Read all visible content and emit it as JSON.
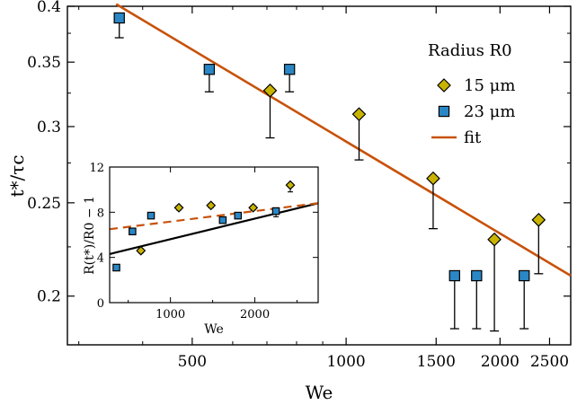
{
  "chart_data": [
    {
      "type": "scatter",
      "xlabel": "We",
      "ylabel": "t*/τc",
      "x_scale": "log",
      "y_scale": "log",
      "xlim": [
        285,
        2750
      ],
      "ylim": [
        0.178,
        0.4
      ],
      "x_ticks": [
        500,
        1000,
        1500,
        2000,
        2500
      ],
      "y_ticks": [
        0.2,
        0.25,
        0.3,
        0.35,
        0.4
      ],
      "legend": {
        "title": "Radius R0",
        "position": "top-right",
        "entries": [
          "15 μm",
          "23 μm",
          "fit"
        ]
      },
      "series": [
        {
          "name": "15 μm",
          "marker": "diamond",
          "color": "#c8b400",
          "x": [
            710,
            1060,
            1480,
            1950,
            2380
          ],
          "y": [
            0.327,
            0.309,
            0.265,
            0.229,
            0.24
          ],
          "err_low": [
            0.292,
            0.277,
            0.235,
            0.184,
            0.211
          ]
        },
        {
          "name": "23 μm",
          "marker": "square",
          "color": "#2a86c4",
          "x": [
            360,
            540,
            775,
            1630,
            1800,
            2230
          ],
          "y": [
            0.389,
            0.344,
            0.344,
            0.21,
            0.21,
            0.21
          ],
          "err_low": [
            0.371,
            0.326,
            0.326,
            0.185,
            0.185,
            0.185
          ]
        },
        {
          "name": "fit",
          "type": "line",
          "color": "#c8520a",
          "x": [
            355,
            2750
          ],
          "y": [
            0.402,
            0.21
          ]
        }
      ]
    },
    {
      "type": "scatter",
      "position": "inset",
      "xlabel": "We",
      "ylabel": "R(t*)/R0 − 1",
      "xlim": [
        280,
        2750
      ],
      "ylim": [
        0,
        12
      ],
      "x_ticks": [
        1000,
        2000
      ],
      "y_ticks": [
        0,
        4,
        8,
        12
      ],
      "series": [
        {
          "name": "15 μm",
          "marker": "diamond",
          "color": "#c8b400",
          "x": [
            650,
            1100,
            1480,
            1980,
            2420
          ],
          "y": [
            4.6,
            8.4,
            8.6,
            8.4,
            10.4
          ],
          "err_low": [
            4.4,
            8.2,
            8.4,
            8.2,
            9.8
          ]
        },
        {
          "name": "23 μm",
          "marker": "square",
          "color": "#2a86c4",
          "x": [
            360,
            550,
            770,
            1620,
            1800,
            2250
          ],
          "y": [
            3.1,
            6.3,
            7.7,
            7.3,
            7.7,
            8.1
          ],
          "err_low": [
            2.9,
            6.1,
            7.5,
            7.1,
            7.5,
            7.6
          ]
        },
        {
          "name": "black-line",
          "type": "line",
          "color": "#000000",
          "x": [
            280,
            2750
          ],
          "y": [
            4.3,
            8.8
          ]
        },
        {
          "name": "orange-dashed",
          "type": "line",
          "dashed": true,
          "color": "#c8520a",
          "x": [
            280,
            2750
          ],
          "y": [
            6.5,
            8.8
          ]
        }
      ]
    }
  ]
}
